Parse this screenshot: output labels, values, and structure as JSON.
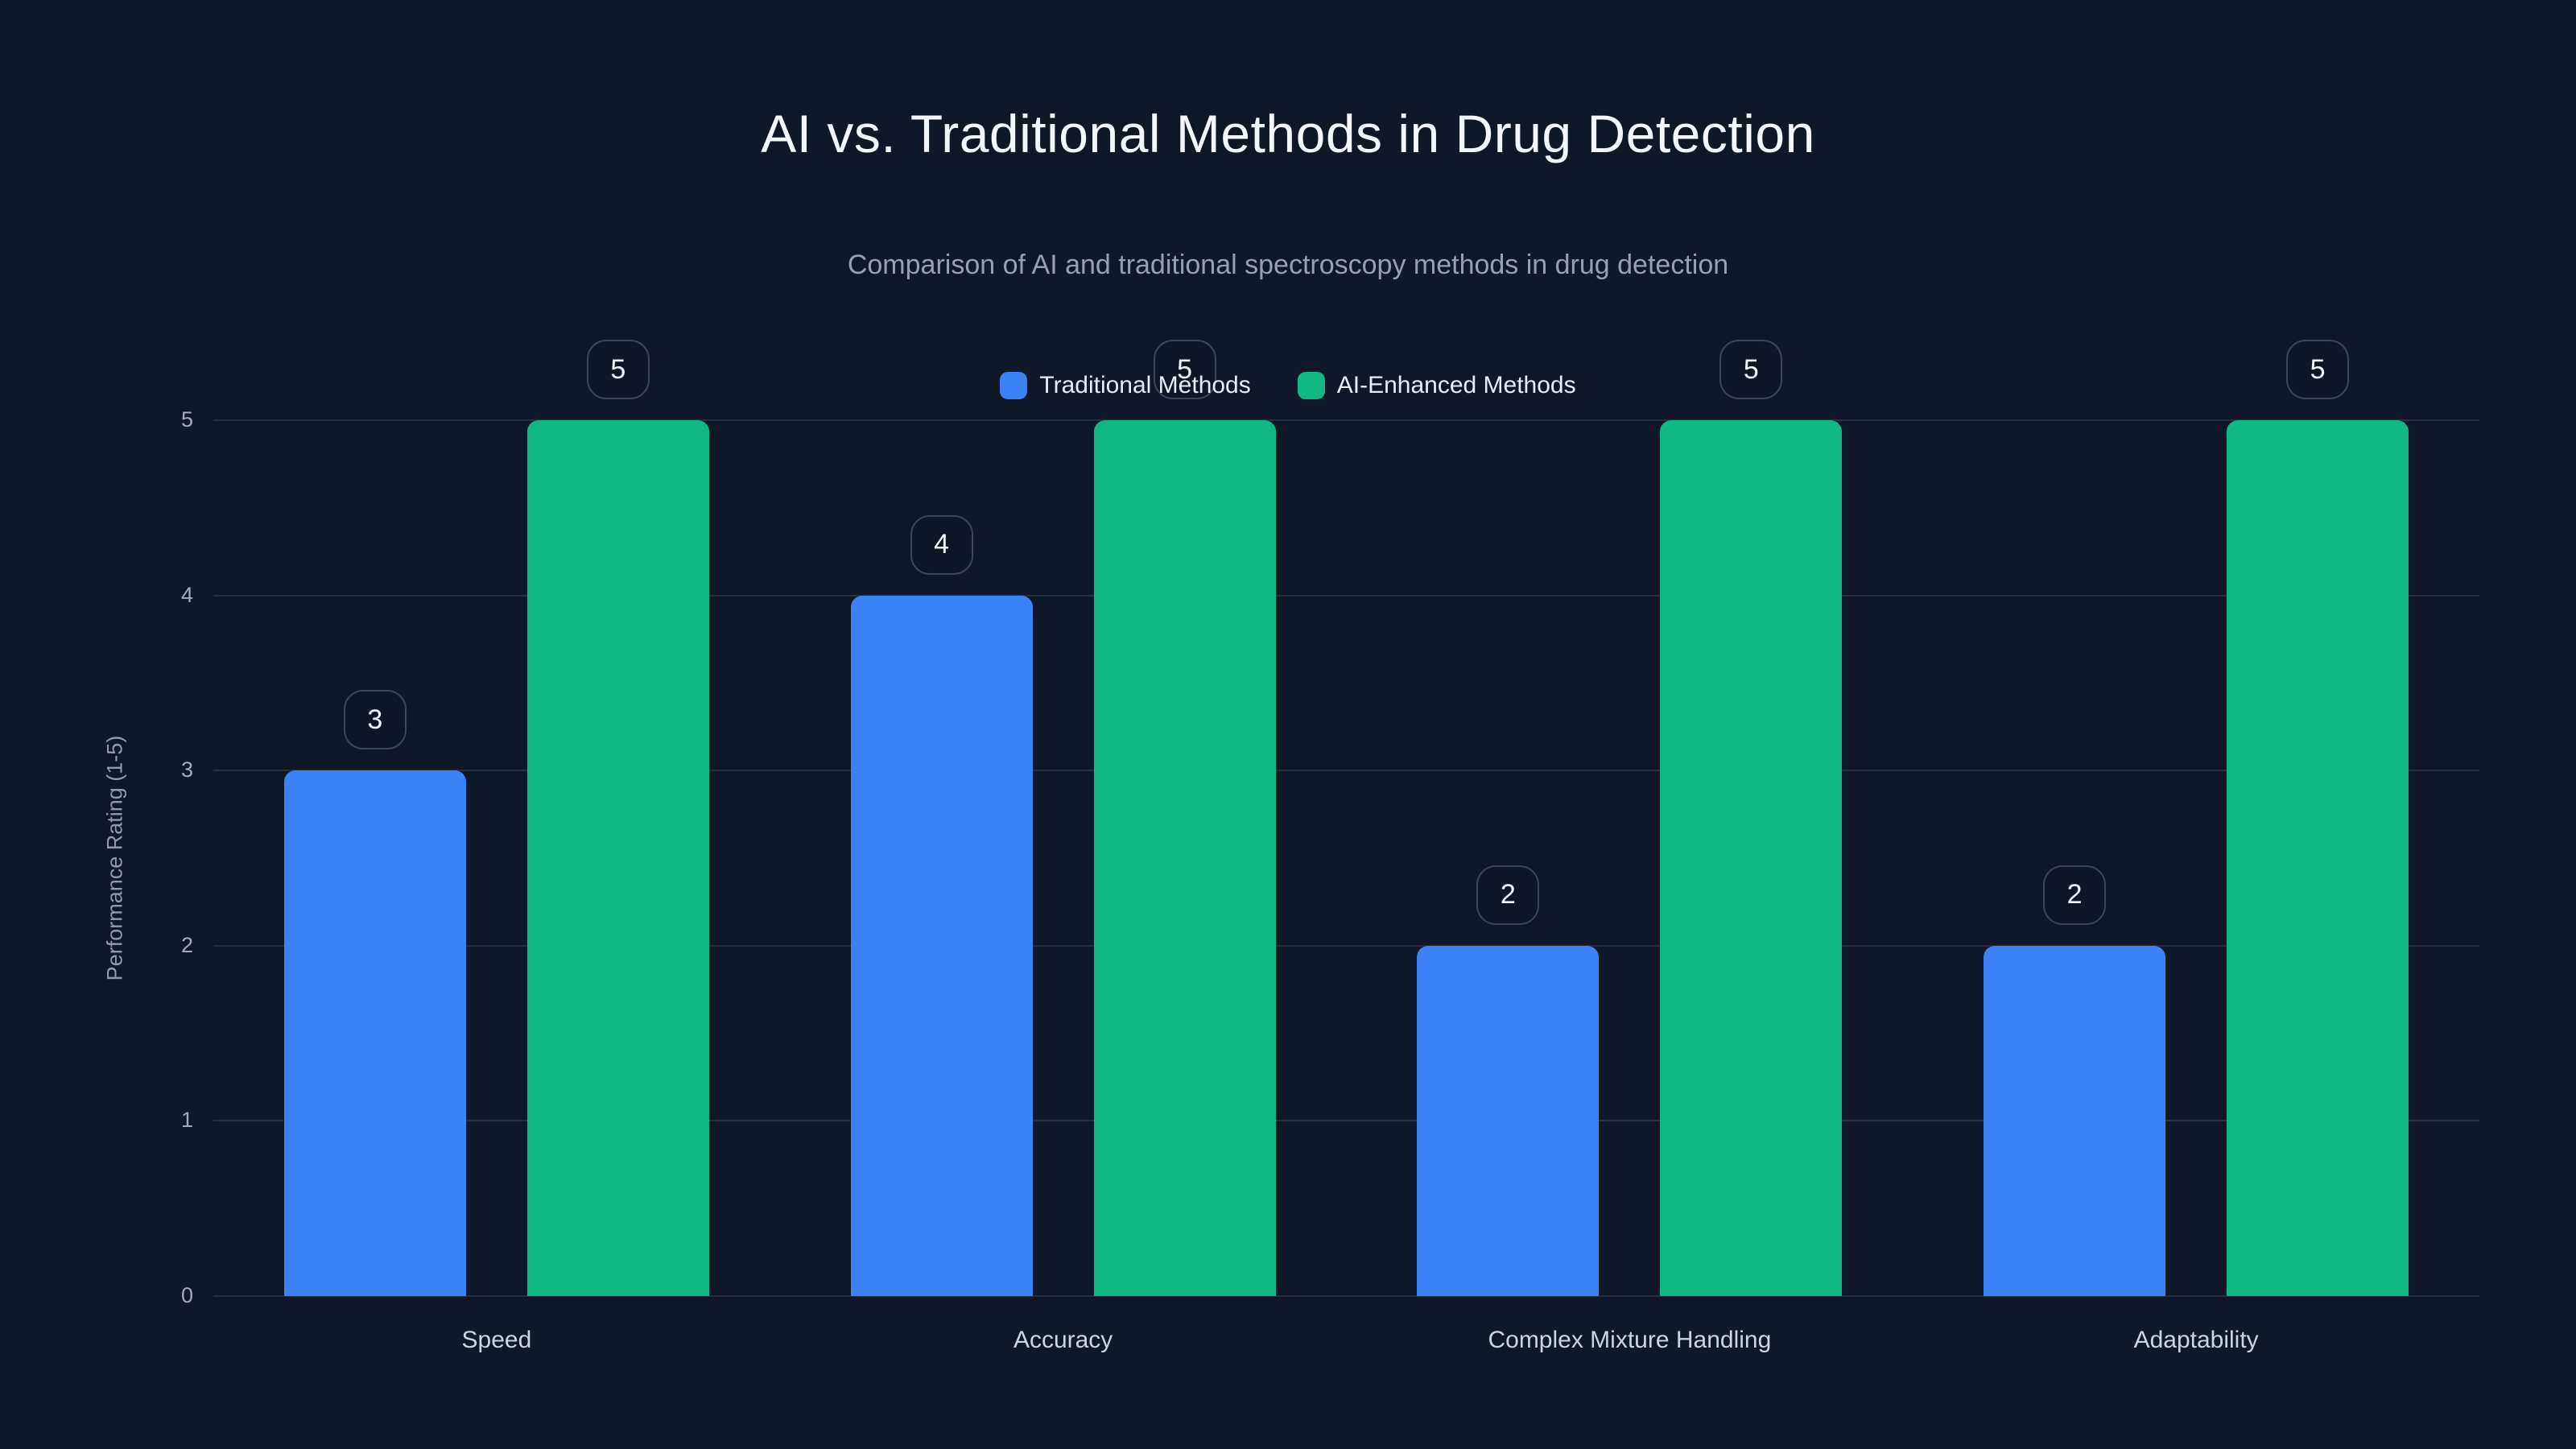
{
  "figure": {
    "title": "AI vs. Traditional Methods in Drug Detection",
    "subtitle": "Comparison of AI and traditional spectroscopy methods in drug detection"
  },
  "chart_data": {
    "type": "bar",
    "title": "AI vs. Traditional Methods in Drug Detection",
    "subtitle": "Comparison of AI and traditional spectroscopy methods in drug detection",
    "categories": [
      "Speed",
      "Accuracy",
      "Complex Mixture Handling",
      "Adaptability"
    ],
    "series": [
      {
        "name": "Traditional Methods",
        "values": [
          3,
          4,
          2,
          2
        ],
        "color": "#3b82f6"
      },
      {
        "name": "AI-Enhanced Methods",
        "values": [
          5,
          5,
          5,
          5
        ],
        "color": "#10b981"
      }
    ],
    "xlabel": "",
    "ylabel": "Performance Rating (1-5)",
    "ylim": [
      0,
      5
    ],
    "yticks": [
      0,
      1,
      2,
      3,
      4,
      5
    ],
    "grid": "horizontal-only",
    "legend_position": "top-center",
    "value_labels": "shown in rounded badges above each bar"
  },
  "colors": {
    "background": "#101726",
    "gridline": "#262e40",
    "title_text": "#f4f6fa",
    "subtitle_text": "#94a0b4",
    "axis_tick_text": "#9fadc2",
    "category_text": "#cbd5e1",
    "legend_text": "#e8edf4",
    "badge_border": "#3d4557",
    "badge_text": "#f4f6f9",
    "traditional_bar": "#3b82f6",
    "ai_bar": "#10b981"
  }
}
